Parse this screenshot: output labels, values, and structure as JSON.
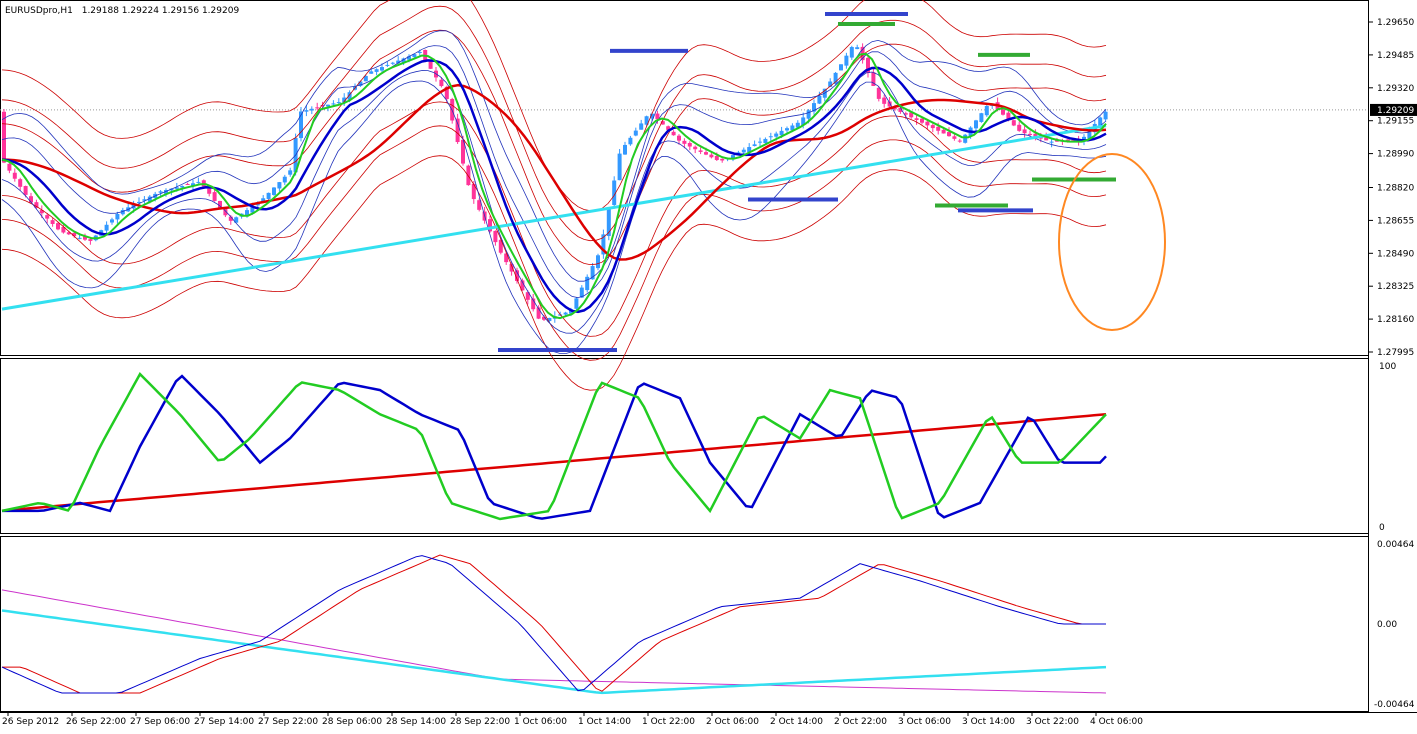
{
  "header": {
    "symbol": "EURUSDpro,H1",
    "ohlc": "1.29188 1.29224 1.29156 1.29209"
  },
  "chart_data": [
    {
      "type": "line",
      "panel": "price",
      "price_axis_labels": [
        "1.29650",
        "1.29485",
        "1.29320",
        "1.29155",
        "1.28990",
        "1.28820",
        "1.28655",
        "1.28490",
        "1.28325",
        "1.28160",
        "1.27995"
      ],
      "price_axis_values": [
        1.2965,
        1.29485,
        1.2932,
        1.29155,
        1.2899,
        1.2882,
        1.28655,
        1.2849,
        1.28325,
        1.2816,
        1.27995
      ],
      "current_price_label": "1.29209",
      "current_price": 1.29209,
      "ylim": [
        1.27995,
        1.297
      ],
      "colors": {
        "bull": "#3399ff",
        "bear": "#ff3399",
        "ema_fast": "#22cc22",
        "ema_mid": "#0000cc",
        "ema_slow": "#dd0000",
        "trend": "#33e0f0",
        "bands_inner": "#2233bb",
        "bands_outer": "#cc0000",
        "support": "#33aa33",
        "resist": "#3344cc",
        "circle": "#ff8822"
      }
    },
    {
      "type": "line",
      "panel": "stochastic",
      "axis_labels": [
        "100",
        "0"
      ],
      "ylim": [
        0,
        100
      ]
    },
    {
      "type": "line",
      "panel": "macd",
      "axis_labels": [
        "0.00464",
        "0.00",
        "-0.00464"
      ],
      "ylim": [
        -0.00464,
        0.00464
      ]
    }
  ],
  "time_axis": [
    "26 Sep 2012",
    "26 Sep 22:00",
    "27 Sep 06:00",
    "27 Sep 14:00",
    "27 Sep 22:00",
    "28 Sep 06:00",
    "28 Sep 14:00",
    "28 Sep 22:00",
    "1 Oct 06:00",
    "1 Oct 14:00",
    "1 Oct 22:00",
    "2 Oct 06:00",
    "2 Oct 14:00",
    "2 Oct 22:00",
    "3 Oct 06:00",
    "3 Oct 14:00",
    "3 Oct 22:00",
    "4 Oct 06:00"
  ]
}
